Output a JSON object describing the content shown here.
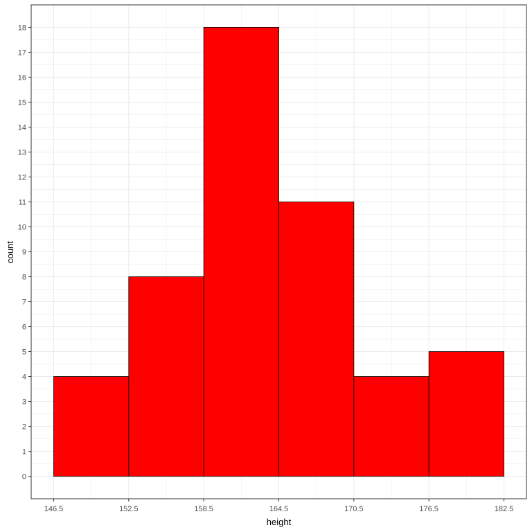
{
  "chart_data": {
    "type": "bar",
    "subtype": "histogram",
    "bins": [
      {
        "x0": 146.5,
        "x1": 152.5,
        "count": 4
      },
      {
        "x0": 152.5,
        "x1": 158.5,
        "count": 8
      },
      {
        "x0": 158.5,
        "x1": 164.5,
        "count": 18
      },
      {
        "x0": 164.5,
        "x1": 170.5,
        "count": 11
      },
      {
        "x0": 170.5,
        "x1": 176.5,
        "count": 4
      },
      {
        "x0": 176.5,
        "x1": 182.5,
        "count": 5
      }
    ],
    "xlabel": "height",
    "ylabel": "count",
    "x_ticks": [
      146.5,
      152.5,
      158.5,
      164.5,
      170.5,
      176.5,
      182.5
    ],
    "x_tick_labels": [
      "146.5",
      "152.5",
      "158.5",
      "164.5",
      "170.5",
      "176.5",
      "182.5"
    ],
    "y_ticks": [
      0,
      1,
      2,
      3,
      4,
      5,
      6,
      7,
      8,
      9,
      10,
      11,
      12,
      13,
      14,
      15,
      16,
      17,
      18
    ],
    "xlim": [
      144.7,
      184.3
    ],
    "ylim": [
      -0.9,
      18.9
    ],
    "grid": true,
    "theme": "bw",
    "colors": {
      "fill": "#ff0000",
      "outline": "#000000",
      "grid": "#ebebeb",
      "panel_border": "#333333"
    }
  }
}
